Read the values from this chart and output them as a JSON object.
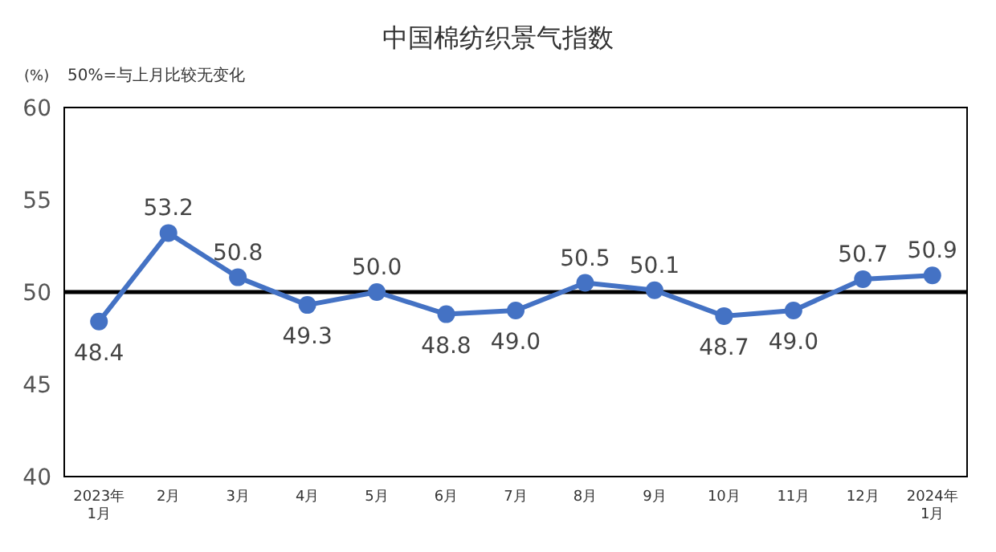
{
  "chart_data": {
    "type": "line",
    "title": "中国棉纺织景气指数",
    "ylabel": "(%)",
    "annotations": [
      "50%=与上月比较无变化"
    ],
    "categories": [
      "2023年\n1月",
      "2月",
      "3月",
      "4月",
      "5月",
      "6月",
      "7月",
      "8月",
      "9月",
      "10月",
      "11月",
      "12月",
      "2024年\n1月"
    ],
    "series": [
      {
        "color": "#4472c4",
        "values": [
          48.4,
          53.2,
          50.8,
          49.3,
          50.0,
          48.8,
          49.0,
          50.5,
          50.1,
          48.7,
          49.0,
          50.7,
          50.9
        ],
        "value_labels": [
          "48.4",
          "53.2",
          "50.8",
          "49.3",
          "50.0",
          "48.8",
          "49.0",
          "50.5",
          "50.1",
          "48.7",
          "49.0",
          "50.7",
          "50.9"
        ]
      }
    ],
    "ylim": [
      40,
      60
    ],
    "yticks": [
      40,
      45,
      50,
      55,
      60
    ],
    "ref_lines": [
      {
        "axis": "y",
        "value": 50,
        "color": "#000000"
      }
    ],
    "marker": "circle",
    "line_style": "solid",
    "grid": false
  }
}
